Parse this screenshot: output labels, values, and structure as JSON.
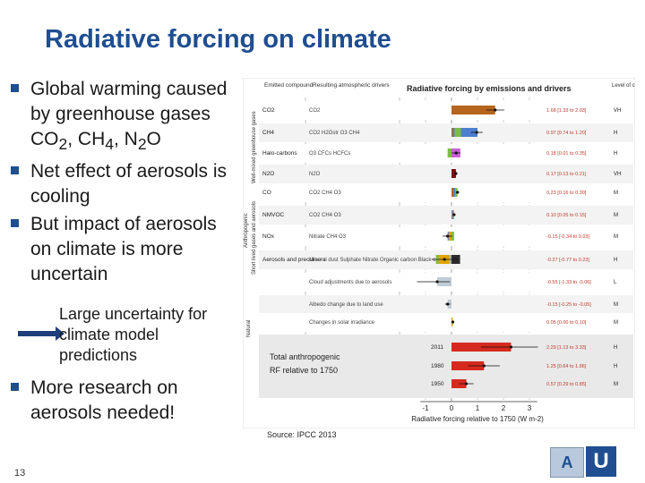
{
  "slide": {
    "title": "Radiative forcing on climate",
    "bullets": [
      "Global warming caused by greenhouse gases CO2, CH4, N2O",
      "Net effect of aerosols is cooling",
      "But impact of aerosols on climate is more uncertain"
    ],
    "sub_note": "Large uncertainty for climate model predictions",
    "last_bullet": "More research on aerosols needed!",
    "source": "Source: IPCC 2013",
    "page_number": "13"
  },
  "figure": {
    "col_emitted": "Emitted compound",
    "col_drivers": "Resulting atmospheric drivers",
    "col_title": "Radiative forcing by emissions and drivers",
    "col_confidence": "Level of confidence",
    "group_anthro": "Anthropogenic",
    "group_wellmixed": "Well-mixed greenhouse gases",
    "group_shortlived": "Short lived gases and aerosols",
    "group_natural": "Natural",
    "rows": [
      {
        "compound": "CO2",
        "drivers": "CO2",
        "value": 1.68,
        "low": 1.33,
        "high": 2.03,
        "text": "1.68 [1.33 to 2.03]",
        "conf": "VH"
      },
      {
        "compound": "CH4",
        "drivers": "CO2 H2Ostr O3 CH4",
        "value": 0.97,
        "low": 0.74,
        "high": 1.2,
        "text": "0.97 [0.74 to 1.20]",
        "conf": "H"
      },
      {
        "compound": "Halo-carbons",
        "drivers": "O3 CFCs HCFCs",
        "value": 0.18,
        "low": 0.01,
        "high": 0.35,
        "text": "0.18 [0.01 to 0.35]",
        "conf": "H"
      },
      {
        "compound": "N2O",
        "drivers": "N2O",
        "value": 0.17,
        "low": 0.13,
        "high": 0.21,
        "text": "0.17 [0.13 to 0.21]",
        "conf": "VH"
      },
      {
        "compound": "CO",
        "drivers": "CO2 CH4 O3",
        "value": 0.23,
        "low": 0.16,
        "high": 0.3,
        "text": "0.23 [0.16 to 0.30]",
        "conf": "M"
      },
      {
        "compound": "NMVOC",
        "drivers": "CO2 CH4 O3",
        "value": 0.1,
        "low": 0.05,
        "high": 0.15,
        "text": "0.10 [0.05 to 0.15]",
        "conf": "M"
      },
      {
        "compound": "NOx",
        "drivers": "Nitrate CH4 O3",
        "value": -0.15,
        "low": -0.34,
        "high": 0.03,
        "text": "-0.15 [-0.34 to 0.03]",
        "conf": "M"
      },
      {
        "compound": "Aerosols and precursors",
        "drivers": "Mineral dust Sulphate Nitrate Organic carbon Black carbon",
        "value": -0.27,
        "low": -0.77,
        "high": 0.23,
        "text": "-0.27 [-0.77 to 0.23]",
        "conf": "H"
      },
      {
        "compound": "",
        "drivers": "Cloud adjustments due to aerosols",
        "value": -0.55,
        "low": -1.33,
        "high": -0.06,
        "text": "-0.55 [-1.33 to -0.06]",
        "conf": "L"
      },
      {
        "compound": "",
        "drivers": "Albedo change due to land use",
        "value": -0.15,
        "low": -0.25,
        "high": -0.05,
        "text": "-0.15 [-0.25 to -0.05]",
        "conf": "M"
      },
      {
        "compound": "",
        "drivers": "Changes in solar irradiance",
        "value": 0.05,
        "low": 0.0,
        "high": 0.1,
        "text": "0.05 [0.00 to 0.10]",
        "conf": "M"
      }
    ],
    "totals_label_1": "Total anthropogenic",
    "totals_label_2": "RF relative to 1750",
    "totals": [
      {
        "year": "2011",
        "value": 2.29,
        "low": 1.13,
        "high": 3.33,
        "text": "2.29 [1.13 to 3.33]",
        "conf": "H"
      },
      {
        "year": "1980",
        "value": 1.25,
        "low": 0.64,
        "high": 1.86,
        "text": "1.25 [0.64 to 1.86]",
        "conf": "H"
      },
      {
        "year": "1950",
        "value": 0.57,
        "low": 0.29,
        "high": 0.85,
        "text": "0.57 [0.29 to 0.85]",
        "conf": "M"
      }
    ],
    "x_ticks": [
      "-1",
      "0",
      "1",
      "2",
      "3"
    ],
    "x_label": "Radiative forcing relative to 1750 (W m-2)",
    "colors": {
      "co2": "#b5651d",
      "ch4": "#4c7fd0",
      "o3": "#7cbf3f",
      "halo": "#c85fd6",
      "n2o": "#7a1010",
      "nitrate": "#e0a200",
      "dust": "#b3b09a",
      "bc": "#2b2b2b",
      "cloud": "#bfcbd6",
      "total": "#d62a1e"
    }
  }
}
